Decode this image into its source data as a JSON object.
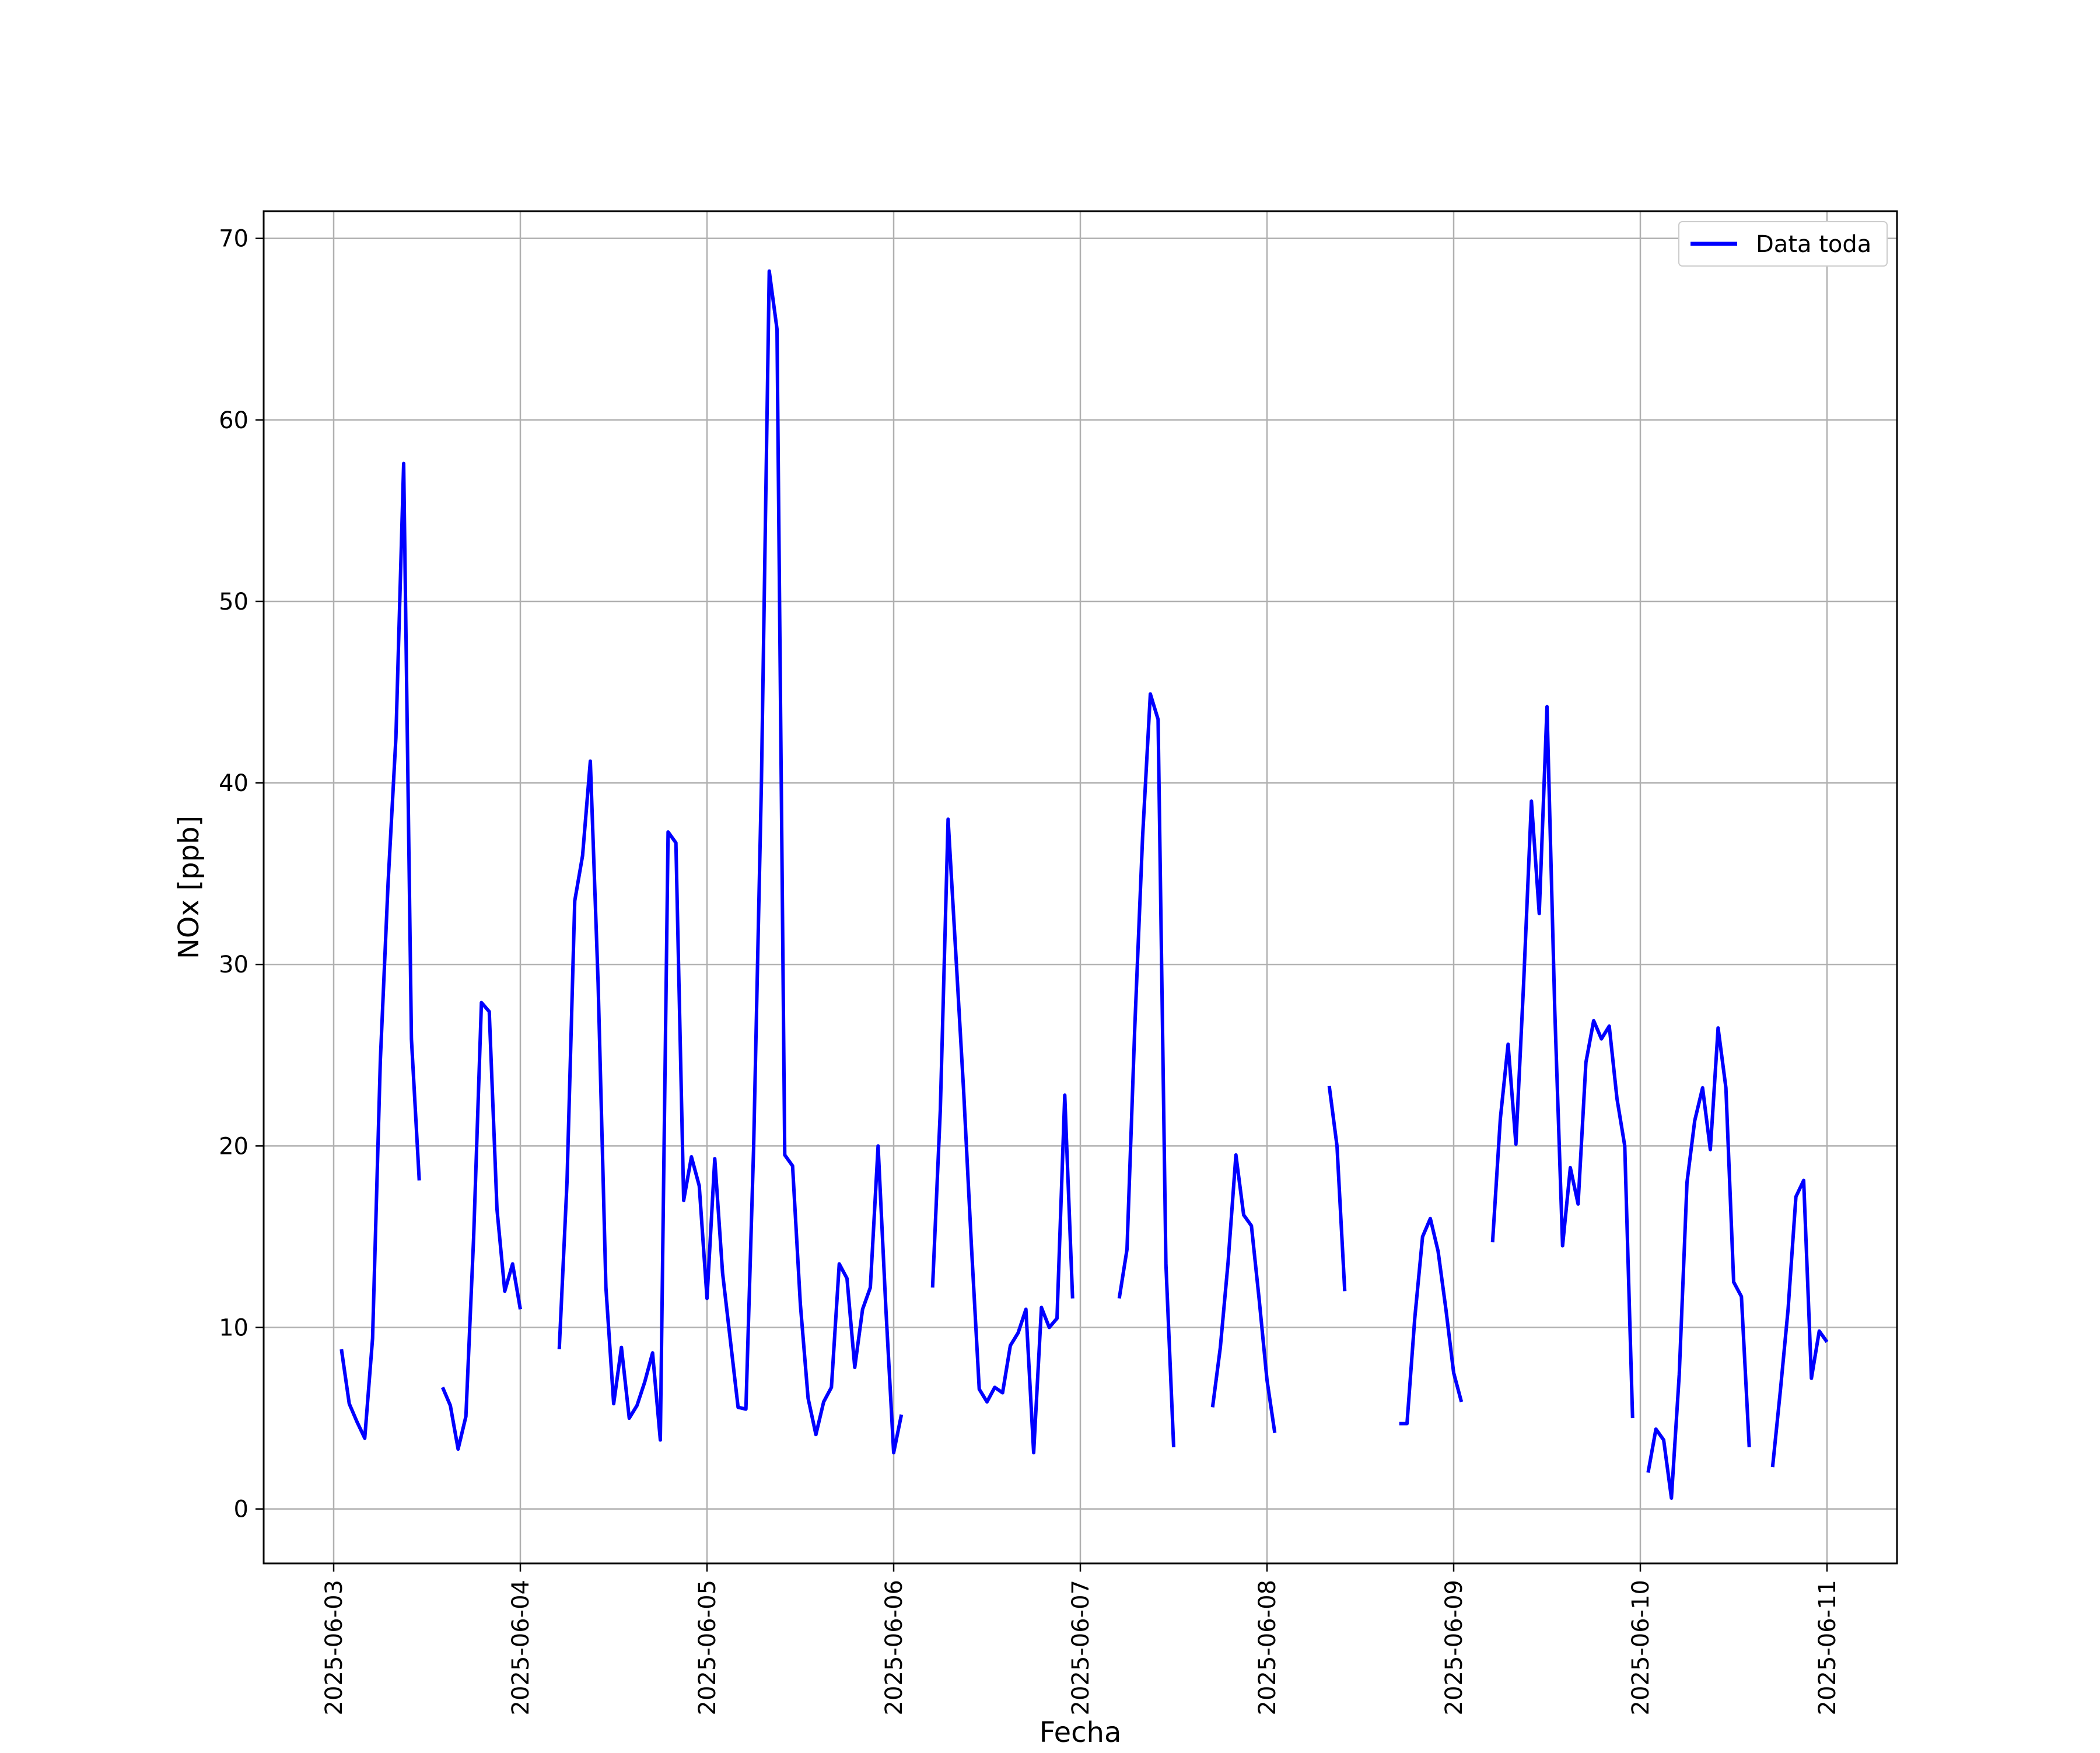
{
  "chart_data": {
    "type": "line",
    "title": "",
    "xlabel": "Fecha",
    "ylabel": "NOx [ppb]",
    "ylim": [
      -3,
      71.5
    ],
    "xlim": [
      "2025-06-02T15:00",
      "2025-06-11T09:00"
    ],
    "yticks": [
      0,
      10,
      20,
      30,
      40,
      50,
      60,
      70
    ],
    "xticks": [
      "2025-06-03",
      "2025-06-04",
      "2025-06-05",
      "2025-06-06",
      "2025-06-07",
      "2025-06-08",
      "2025-06-09",
      "2025-06-10",
      "2025-06-11"
    ],
    "grid": true,
    "legend": {
      "position": "top-right",
      "entries": [
        "Data toda"
      ]
    },
    "colors": {
      "series": "#0000ff",
      "grid": "#b0b0b0",
      "axes": "#000000"
    },
    "series": [
      {
        "name": "Data toda",
        "segments": [
          [
            [
              "2025-06-03T01:00",
              8.8
            ],
            [
              "2025-06-03T02:00",
              5.8
            ],
            [
              "2025-06-03T03:00",
              4.8
            ],
            [
              "2025-06-03T04:00",
              3.9
            ],
            [
              "2025-06-03T05:00",
              9.4
            ],
            [
              "2025-06-03T06:00",
              24.7
            ],
            [
              "2025-06-03T07:00",
              34.5
            ],
            [
              "2025-06-03T08:00",
              42.5
            ],
            [
              "2025-06-03T09:00",
              57.6
            ],
            [
              "2025-06-03T10:00",
              25.9
            ],
            [
              "2025-06-03T11:00",
              18.1
            ]
          ],
          [
            [
              "2025-06-03T14:00",
              6.7
            ],
            [
              "2025-06-03T15:00",
              5.7
            ],
            [
              "2025-06-03T16:00",
              3.3
            ],
            [
              "2025-06-03T17:00",
              5.1
            ],
            [
              "2025-06-03T18:00",
              15.0
            ],
            [
              "2025-06-03T19:00",
              27.9
            ],
            [
              "2025-06-03T20:00",
              27.4
            ],
            [
              "2025-06-03T21:00",
              16.5
            ],
            [
              "2025-06-03T22:00",
              12.0
            ],
            [
              "2025-06-03T23:00",
              13.5
            ],
            [
              "2025-06-04T00:00",
              11.0
            ]
          ],
          [
            [
              "2025-06-04T05:00",
              8.8
            ],
            [
              "2025-06-04T06:00",
              18.0
            ],
            [
              "2025-06-04T07:00",
              33.5
            ],
            [
              "2025-06-04T08:00",
              36.0
            ],
            [
              "2025-06-04T09:00",
              41.2
            ],
            [
              "2025-06-04T10:00",
              29.0
            ],
            [
              "2025-06-04T11:00",
              12.2
            ],
            [
              "2025-06-04T12:00",
              5.8
            ],
            [
              "2025-06-04T13:00",
              8.9
            ],
            [
              "2025-06-04T14:00",
              5.0
            ],
            [
              "2025-06-04T15:00",
              5.7
            ],
            [
              "2025-06-04T16:00",
              7.0
            ],
            [
              "2025-06-04T17:00",
              8.6
            ],
            [
              "2025-06-04T18:00",
              3.8
            ],
            [
              "2025-06-04T19:00",
              37.3
            ],
            [
              "2025-06-04T20:00",
              36.7
            ],
            [
              "2025-06-04T21:00",
              17.0
            ],
            [
              "2025-06-04T22:00",
              19.4
            ],
            [
              "2025-06-04T23:00",
              17.8
            ],
            [
              "2025-06-05T00:00",
              11.6
            ],
            [
              "2025-06-05T01:00",
              19.3
            ],
            [
              "2025-06-05T02:00",
              13.0
            ],
            [
              "2025-06-05T03:00",
              9.3
            ],
            [
              "2025-06-05T04:00",
              5.6
            ],
            [
              "2025-06-05T05:00",
              5.5
            ],
            [
              "2025-06-05T06:00",
              20.0
            ],
            [
              "2025-06-05T07:00",
              40.0
            ],
            [
              "2025-06-05T08:00",
              68.2
            ],
            [
              "2025-06-05T09:00",
              65.0
            ],
            [
              "2025-06-05T10:00",
              19.5
            ],
            [
              "2025-06-05T11:00",
              18.9
            ],
            [
              "2025-06-05T12:00",
              11.3
            ],
            [
              "2025-06-05T13:00",
              6.1
            ],
            [
              "2025-06-05T14:00",
              4.1
            ],
            [
              "2025-06-05T15:00",
              5.9
            ],
            [
              "2025-06-05T16:00",
              6.7
            ],
            [
              "2025-06-05T17:00",
              13.5
            ],
            [
              "2025-06-05T18:00",
              12.7
            ],
            [
              "2025-06-05T19:00",
              7.8
            ],
            [
              "2025-06-05T20:00",
              11.0
            ],
            [
              "2025-06-05T21:00",
              12.2
            ],
            [
              "2025-06-05T22:00",
              20.0
            ],
            [
              "2025-06-05T23:00",
              11.0
            ],
            [
              "2025-06-06T00:00",
              3.1
            ],
            [
              "2025-06-06T01:00",
              5.2
            ]
          ],
          [
            [
              "2025-06-06T05:00",
              12.2
            ],
            [
              "2025-06-06T06:00",
              22.0
            ],
            [
              "2025-06-06T07:00",
              38.0
            ],
            [
              "2025-06-06T08:00",
              30.5
            ],
            [
              "2025-06-06T09:00",
              23.0
            ],
            [
              "2025-06-06T10:00",
              14.5
            ],
            [
              "2025-06-06T11:00",
              6.6
            ],
            [
              "2025-06-06T12:00",
              5.9
            ],
            [
              "2025-06-06T13:00",
              6.7
            ],
            [
              "2025-06-06T14:00",
              6.4
            ],
            [
              "2025-06-06T15:00",
              9.0
            ],
            [
              "2025-06-06T16:00",
              9.7
            ],
            [
              "2025-06-06T17:00",
              11.0
            ],
            [
              "2025-06-06T18:00",
              3.1
            ],
            [
              "2025-06-06T19:00",
              11.1
            ],
            [
              "2025-06-06T20:00",
              10.0
            ],
            [
              "2025-06-06T21:00",
              10.5
            ],
            [
              "2025-06-06T22:00",
              22.8
            ],
            [
              "2025-06-06T23:00",
              11.6
            ]
          ],
          [
            [
              "2025-06-07T05:00",
              11.6
            ],
            [
              "2025-06-07T06:00",
              14.3
            ],
            [
              "2025-06-07T07:00",
              26.5
            ],
            [
              "2025-06-07T08:00",
              37.0
            ],
            [
              "2025-06-07T09:00",
              44.9
            ],
            [
              "2025-06-07T10:00",
              43.5
            ],
            [
              "2025-06-07T11:00",
              13.5
            ],
            [
              "2025-06-07T12:00",
              3.4
            ]
          ],
          [
            [
              "2025-06-07T17:00",
              5.6
            ],
            [
              "2025-06-07T18:00",
              8.9
            ],
            [
              "2025-06-07T19:00",
              13.6
            ],
            [
              "2025-06-07T20:00",
              19.5
            ],
            [
              "2025-06-07T21:00",
              16.2
            ],
            [
              "2025-06-07T22:00",
              15.6
            ],
            [
              "2025-06-07T23:00",
              11.5
            ],
            [
              "2025-06-08T00:00",
              7.1
            ],
            [
              "2025-06-08T01:00",
              4.2
            ]
          ],
          [
            [
              "2025-06-08T08:00",
              23.3
            ],
            [
              "2025-06-08T09:00",
              20.0
            ],
            [
              "2025-06-08T10:00",
              12.0
            ]
          ],
          [
            [
              "2025-06-08T17:00",
              4.7
            ],
            [
              "2025-06-08T18:00",
              4.7
            ],
            [
              "2025-06-08T19:00",
              10.5
            ],
            [
              "2025-06-08T20:00",
              15.0
            ],
            [
              "2025-06-08T21:00",
              16.0
            ],
            [
              "2025-06-08T22:00",
              14.2
            ],
            [
              "2025-06-08T23:00",
              11.0
            ],
            [
              "2025-06-09T00:00",
              7.5
            ],
            [
              "2025-06-09T01:00",
              5.9
            ]
          ],
          [
            [
              "2025-06-09T05:00",
              14.7
            ],
            [
              "2025-06-09T06:00",
              21.5
            ],
            [
              "2025-06-09T07:00",
              25.6
            ],
            [
              "2025-06-09T08:00",
              20.1
            ],
            [
              "2025-06-09T09:00",
              29.0
            ],
            [
              "2025-06-09T10:00",
              39.0
            ],
            [
              "2025-06-09T11:00",
              32.8
            ],
            [
              "2025-06-09T12:00",
              44.2
            ],
            [
              "2025-06-09T13:00",
              27.5
            ],
            [
              "2025-06-09T14:00",
              14.5
            ],
            [
              "2025-06-09T15:00",
              18.8
            ],
            [
              "2025-06-09T16:00",
              16.8
            ],
            [
              "2025-06-09T17:00",
              24.6
            ],
            [
              "2025-06-09T18:00",
              26.9
            ],
            [
              "2025-06-09T19:00",
              25.9
            ],
            [
              "2025-06-09T20:00",
              26.6
            ],
            [
              "2025-06-09T21:00",
              22.6
            ],
            [
              "2025-06-09T22:00",
              20.0
            ],
            [
              "2025-06-09T23:00",
              5.0
            ]
          ],
          [
            [
              "2025-06-10T01:00",
              2.0
            ],
            [
              "2025-06-10T02:00",
              4.4
            ],
            [
              "2025-06-10T03:00",
              3.8
            ],
            [
              "2025-06-10T04:00",
              0.6
            ],
            [
              "2025-06-10T05:00",
              7.4
            ],
            [
              "2025-06-10T06:00",
              18.0
            ],
            [
              "2025-06-10T07:00",
              21.4
            ],
            [
              "2025-06-10T08:00",
              23.2
            ],
            [
              "2025-06-10T09:00",
              19.8
            ],
            [
              "2025-06-10T10:00",
              26.5
            ],
            [
              "2025-06-10T11:00",
              23.2
            ],
            [
              "2025-06-10T12:00",
              12.5
            ],
            [
              "2025-06-10T13:00",
              11.7
            ],
            [
              "2025-06-10T14:00",
              3.4
            ]
          ],
          [
            [
              "2025-06-10T17:00",
              2.3
            ],
            [
              "2025-06-10T18:00",
              6.5
            ],
            [
              "2025-06-10T19:00",
              11.0
            ],
            [
              "2025-06-10T20:00",
              17.2
            ],
            [
              "2025-06-10T21:00",
              18.1
            ],
            [
              "2025-06-10T22:00",
              7.2
            ],
            [
              "2025-06-10T23:00",
              9.8
            ],
            [
              "2025-06-11T00:00",
              9.2
            ]
          ]
        ]
      }
    ]
  }
}
